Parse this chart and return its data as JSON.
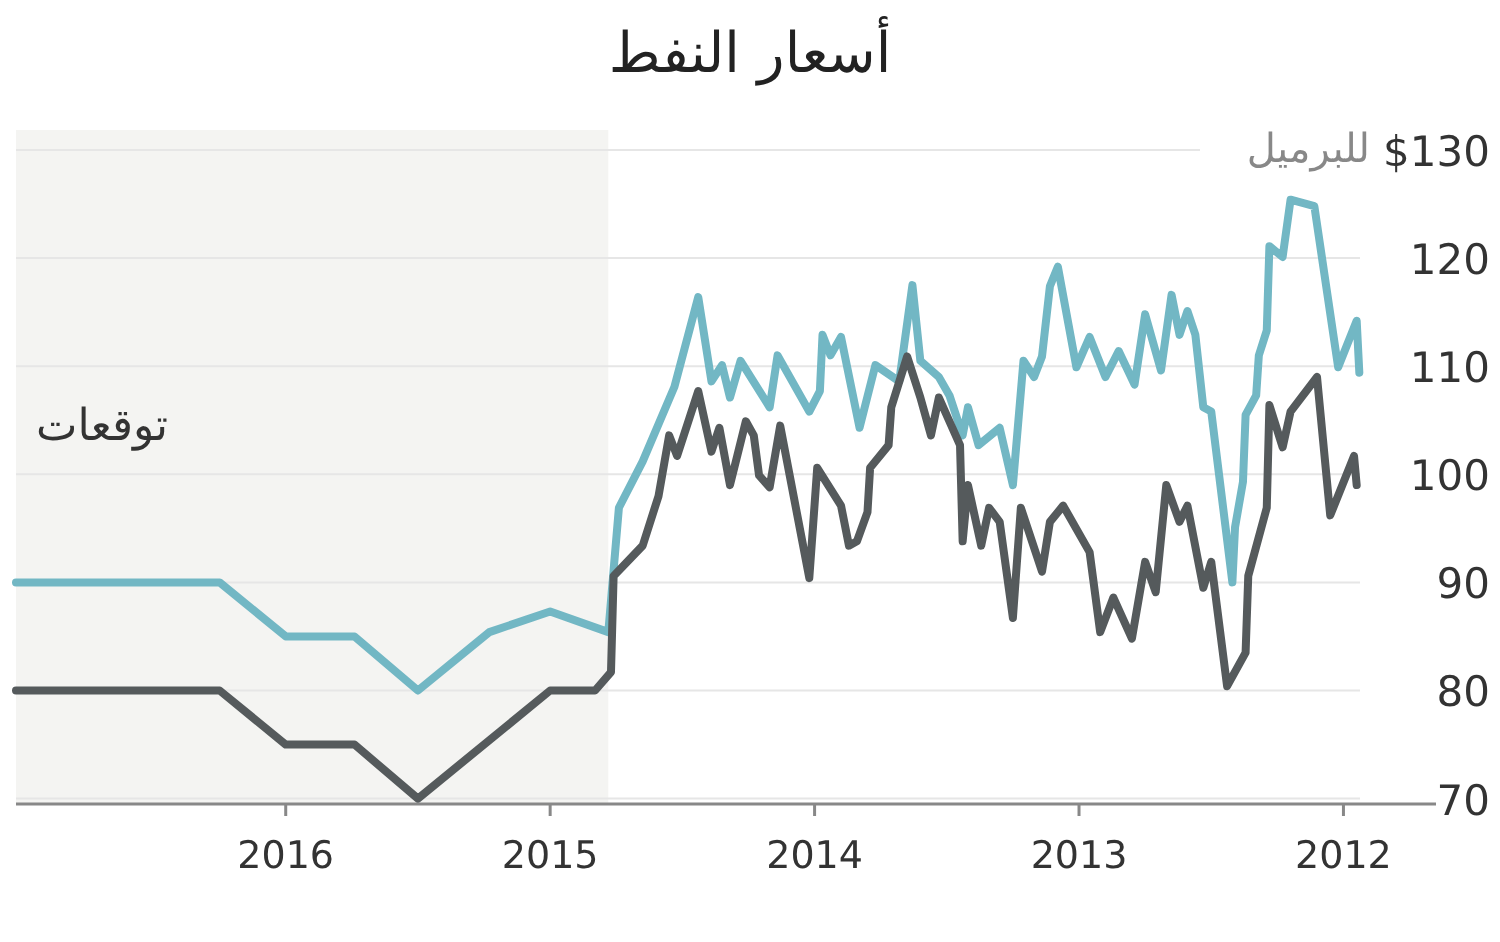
{
  "chart_data": {
    "type": "line",
    "title": "أسعار النفط",
    "ylabel": "للبرميل",
    "xlim": [
      2017.02,
      2011.65
    ],
    "xticks": [
      2016,
      2015,
      2014,
      2013,
      2012
    ],
    "ylim": [
      69.5,
      130
    ],
    "yticks": [
      70,
      80,
      90,
      100,
      110,
      120,
      {
        "value": 130,
        "label": "$130"
      }
    ],
    "grid": "y",
    "line_style": "solid",
    "marker": "none",
    "bands": [
      {
        "axis": "x",
        "from": 2014.78,
        "to": 2017.02,
        "label": "توقعات",
        "color": "#f4f4f2"
      }
    ],
    "series": [
      {
        "color": "#72b7c4",
        "x": [
          2017.02,
          2016.25,
          2016.0,
          2015.74,
          2015.5,
          2015.23,
          2015.0,
          2014.78,
          2014.74,
          2014.65,
          2014.53,
          2014.44,
          2014.39,
          2014.35,
          2014.32,
          2014.28,
          2014.17,
          2014.14,
          2014.02,
          2013.98,
          2013.97,
          2013.94,
          2013.9,
          2013.83,
          2013.77,
          2013.68,
          2013.63,
          2013.6,
          2013.53,
          2013.49,
          2013.44,
          2013.42,
          2013.38,
          2013.3,
          2013.25,
          2013.21,
          2013.17,
          2013.14,
          2013.11,
          2013.08,
          2013.01,
          2012.96,
          2012.9,
          2012.85,
          2012.79,
          2012.75,
          2012.69,
          2012.65,
          2012.62,
          2012.59,
          2012.56,
          2012.53,
          2012.5,
          2012.42,
          2012.41,
          2012.38,
          2012.37,
          2012.33,
          2012.32,
          2012.29,
          2012.28,
          2012.23,
          2012.2,
          2012.11,
          2012.02,
          2011.95,
          2011.94
        ],
        "values": [
          90,
          90,
          85,
          85,
          80,
          85.4,
          87.3,
          85.4,
          96.9,
          101.2,
          108.1,
          116.4,
          108.6,
          110.1,
          107.1,
          110.5,
          106.2,
          111.0,
          105.8,
          107.7,
          112.9,
          111.0,
          112.7,
          104.3,
          110.1,
          108.6,
          117.5,
          110.5,
          109.0,
          107.3,
          103.6,
          106.2,
          102.7,
          104.3,
          99.0,
          110.5,
          109.0,
          110.9,
          117.4,
          119.2,
          109.9,
          112.7,
          109.0,
          111.4,
          108.3,
          114.8,
          109.6,
          116.6,
          112.9,
          115.1,
          112.9,
          106.2,
          105.8,
          90.0,
          95.1,
          99.3,
          105.5,
          107.3,
          111.0,
          113.3,
          121.1,
          120.1,
          125.4,
          124.8,
          109.9,
          114.2,
          109.4
        ]
      },
      {
        "color": "#555a5c",
        "x": [
          2017.02,
          2016.25,
          2016.0,
          2015.74,
          2015.5,
          2015.0,
          2014.83,
          2014.77,
          2014.76,
          2014.65,
          2014.59,
          2014.55,
          2014.52,
          2014.44,
          2014.39,
          2014.36,
          2014.32,
          2014.26,
          2014.23,
          2014.21,
          2014.17,
          2014.13,
          2014.02,
          2013.99,
          2013.9,
          2013.87,
          2013.84,
          2013.8,
          2013.79,
          2013.72,
          2013.71,
          2013.65,
          2013.6,
          2013.56,
          2013.53,
          2013.45,
          2013.44,
          2013.42,
          2013.37,
          2013.34,
          2013.3,
          2013.25,
          2013.22,
          2013.14,
          2013.11,
          2013.06,
          2012.96,
          2012.92,
          2012.87,
          2012.8,
          2012.75,
          2012.71,
          2012.67,
          2012.62,
          2012.59,
          2012.53,
          2012.5,
          2012.44,
          2012.37,
          2012.36,
          2012.29,
          2012.28,
          2012.23,
          2012.2,
          2012.1,
          2012.05,
          2011.96,
          2011.95
        ],
        "values": [
          80,
          80,
          75,
          75,
          70,
          80,
          80,
          81.7,
          90.6,
          93.4,
          98.0,
          103.6,
          101.7,
          107.7,
          102.1,
          104.3,
          99.0,
          104.9,
          103.6,
          99.9,
          98.8,
          104.5,
          90.4,
          100.6,
          97.1,
          93.4,
          93.8,
          96.5,
          100.6,
          102.7,
          106.2,
          110.9,
          107.1,
          103.6,
          107.1,
          102.7,
          93.8,
          99.0,
          93.4,
          96.9,
          95.6,
          86.7,
          96.9,
          91.0,
          95.6,
          97.1,
          92.8,
          85.4,
          88.6,
          84.8,
          91.9,
          89.1,
          99.0,
          95.6,
          97.1,
          89.5,
          91.9,
          80.4,
          83.5,
          90.6,
          96.9,
          106.4,
          102.5,
          105.8,
          109.0,
          96.2,
          101.7,
          99.0
        ]
      }
    ]
  }
}
